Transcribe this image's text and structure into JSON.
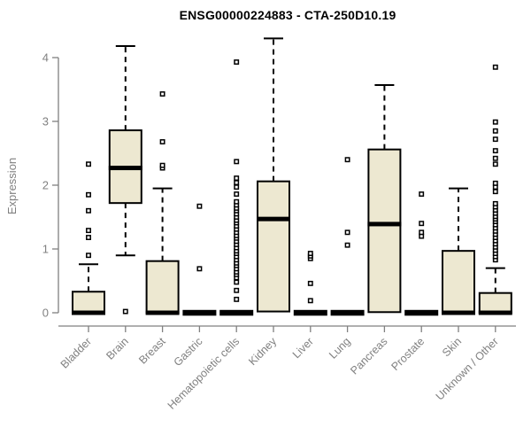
{
  "page": {
    "background": "#ffffff"
  },
  "chart_data": {
    "type": "boxplot",
    "title": "ENSG00000224883 - CTA-250D10.19",
    "xlabel": "",
    "ylabel": "Expression",
    "ylim": [
      0,
      4.4
    ],
    "yticks": [
      0,
      1,
      2,
      3,
      4
    ],
    "grid": false,
    "legend": "none",
    "colors": {
      "box_fill": "#EDE8D1",
      "box_stroke": "#000000",
      "median": "#000000",
      "axis": "#808080",
      "tick_label": "#808080",
      "title": "#000000"
    },
    "categories": [
      "Bladder",
      "Brain",
      "Breast",
      "Gastric",
      "Hematopoietic cells",
      "Kidney",
      "Liver",
      "Lung",
      "Pancreas",
      "Prostate",
      "Skin",
      "Unknown / Other"
    ],
    "series": [
      {
        "category": "Bladder",
        "whisker_low": 0,
        "q1": 0,
        "median": 0,
        "q3": 0.33,
        "whisker_high": 0.76,
        "outliers": [
          0.9,
          1.18,
          1.29,
          1.6,
          1.85,
          2.33
        ]
      },
      {
        "category": "Brain",
        "whisker_low": 0.9,
        "q1": 1.72,
        "median": 2.27,
        "q3": 2.86,
        "whisker_high": 4.18,
        "outliers": [
          0.02
        ]
      },
      {
        "category": "Breast",
        "whisker_low": 0,
        "q1": 0,
        "median": 0,
        "q3": 0.81,
        "whisker_high": 1.95,
        "outliers": [
          2.27,
          2.31,
          2.68,
          3.43
        ]
      },
      {
        "category": "Gastric",
        "whisker_low": 0,
        "q1": 0,
        "median": 0,
        "q3": 0,
        "whisker_high": 0,
        "outliers": [
          0.69,
          1.67
        ]
      },
      {
        "category": "Hematopoietic cells",
        "whisker_low": 0,
        "q1": 0,
        "median": 0,
        "q3": 0,
        "whisker_high": 0,
        "outliers": [
          0.21,
          0.35,
          0.48,
          0.55,
          0.6,
          0.64,
          0.69,
          0.74,
          0.78,
          0.83,
          0.88,
          0.93,
          0.97,
          1.02,
          1.07,
          1.12,
          1.17,
          1.21,
          1.26,
          1.31,
          1.36,
          1.41,
          1.45,
          1.5,
          1.55,
          1.6,
          1.64,
          1.69,
          1.74,
          1.86,
          1.97,
          2.04,
          2.11,
          2.37,
          3.93
        ]
      },
      {
        "category": "Kidney",
        "whisker_low": 0,
        "q1": 0.02,
        "median": 1.47,
        "q3": 2.06,
        "whisker_high": 4.3,
        "outliers": []
      },
      {
        "category": "Liver",
        "whisker_low": 0,
        "q1": 0,
        "median": 0,
        "q3": 0,
        "whisker_high": 0,
        "outliers": [
          0.19,
          0.46,
          0.85,
          0.89,
          0.93
        ]
      },
      {
        "category": "Lung",
        "whisker_low": 0,
        "q1": 0,
        "median": 0,
        "q3": 0,
        "whisker_high": 0,
        "outliers": [
          1.06,
          1.26,
          2.4
        ]
      },
      {
        "category": "Pancreas",
        "whisker_low": 0,
        "q1": 0.01,
        "median": 1.39,
        "q3": 2.56,
        "whisker_high": 3.57,
        "outliers": []
      },
      {
        "category": "Prostate",
        "whisker_low": 0,
        "q1": 0,
        "median": 0,
        "q3": 0,
        "whisker_high": 0,
        "outliers": [
          1.2,
          1.26,
          1.4,
          1.86
        ]
      },
      {
        "category": "Skin",
        "whisker_low": 0,
        "q1": 0,
        "median": 0,
        "q3": 0.97,
        "whisker_high": 1.95,
        "outliers": []
      },
      {
        "category": "Unknown / Other",
        "whisker_low": 0,
        "q1": 0,
        "median": 0,
        "q3": 0.31,
        "whisker_high": 0.7,
        "outliers": [
          0.83,
          0.88,
          0.93,
          0.98,
          1.03,
          1.08,
          1.13,
          1.18,
          1.23,
          1.28,
          1.33,
          1.38,
          1.43,
          1.47,
          1.51,
          1.56,
          1.61,
          1.66,
          1.71,
          1.9,
          1.97,
          2.03,
          2.33,
          2.42,
          2.54,
          2.72,
          2.85,
          2.99,
          3.85
        ]
      }
    ]
  }
}
